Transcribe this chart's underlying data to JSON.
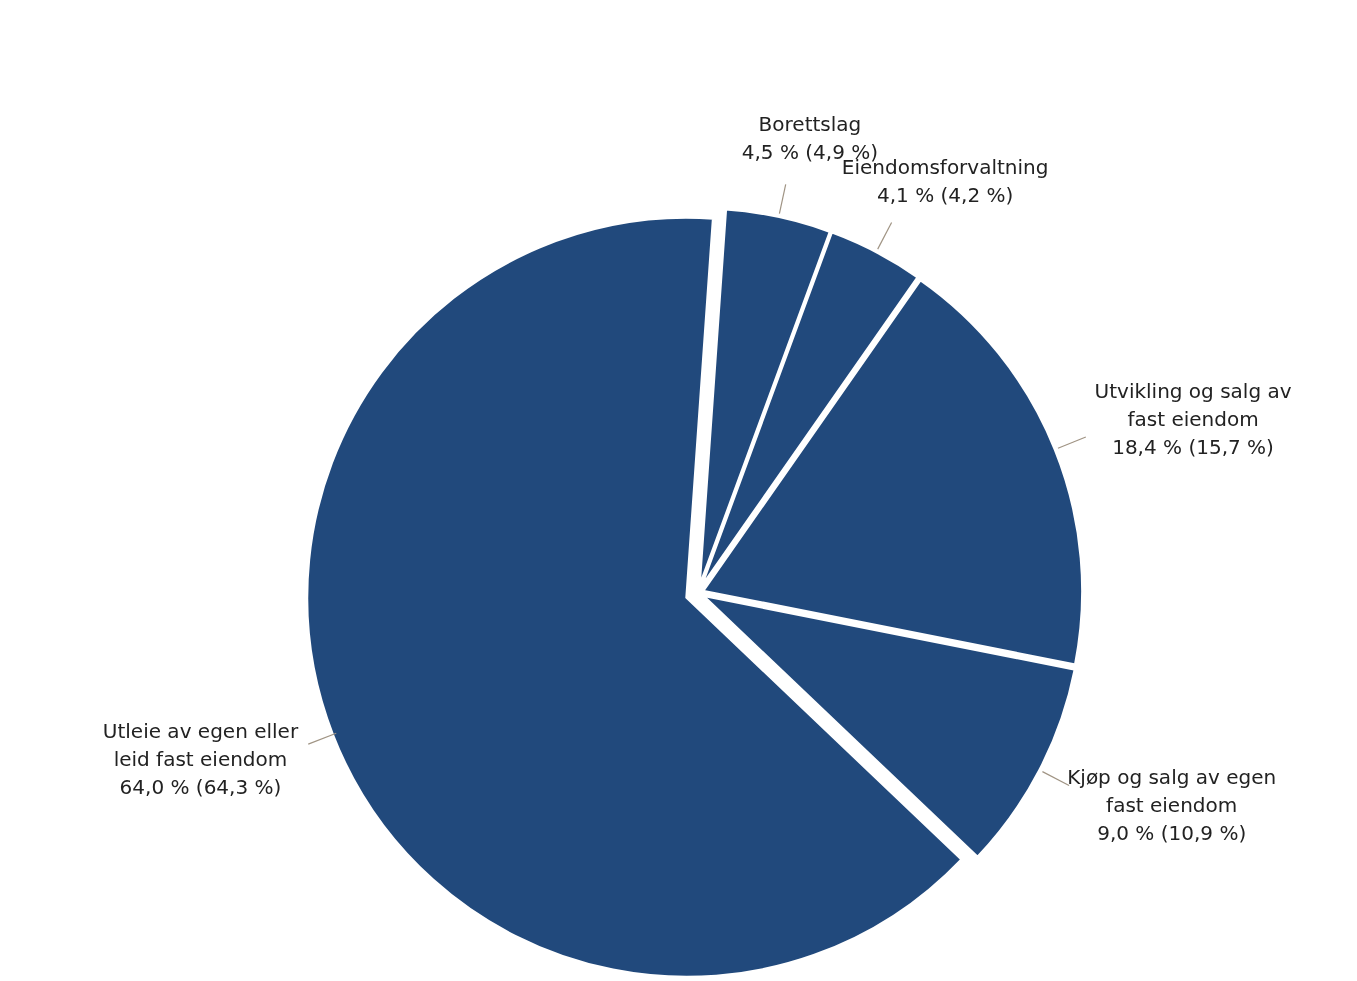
{
  "chart_data": {
    "type": "pie",
    "categories": [
      "Borettslag",
      "Eiendomsforvaltning",
      "Utvikling og salg av fast eiendom",
      "Kjøp og salg av egen fast eiendom",
      "Utleie av egen eller leid fast eiendom"
    ],
    "values": [
      4.5,
      4.1,
      18.4,
      9.0,
      64.0
    ],
    "colors": [
      "#21497c",
      "#21497c",
      "#21497c",
      "#21497c",
      "#21497c"
    ],
    "value_labels": [
      "4,5 % (4,9 %)",
      "4,1 % (4,2 %)",
      "18,4 % (15,7 %)",
      "9,0 % (10,9 %)",
      "64,0 % (64,3 %)"
    ]
  }
}
